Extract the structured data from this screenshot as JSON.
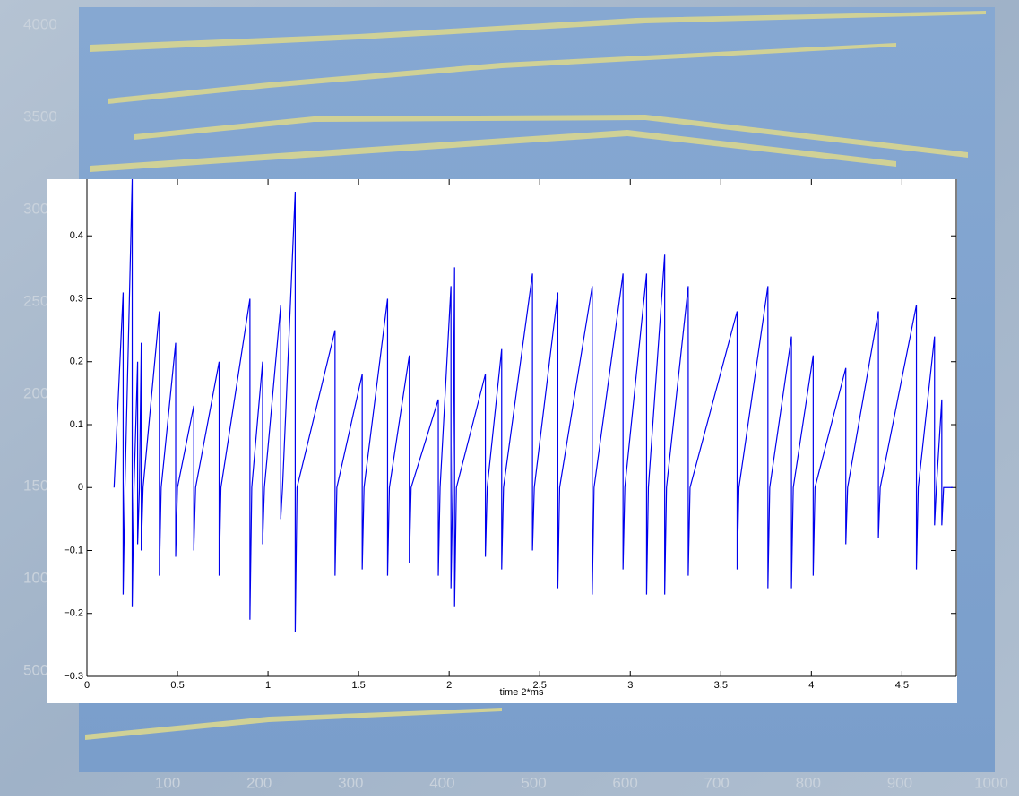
{
  "chart_data": [
    {
      "type": "image",
      "xlim": [
        0,
        1000
      ],
      "xticks": [
        100,
        200,
        300,
        400,
        500,
        600,
        700,
        800,
        900,
        1000
      ],
      "ylim": [
        0,
        4000
      ],
      "yticks": [
        500,
        1000,
        1500,
        2000,
        2500,
        3000,
        3500,
        4000
      ]
    },
    {
      "type": "line",
      "xlabel": "time   2*ms",
      "xlim": [
        0,
        4.8
      ],
      "ylim": [
        -0.3,
        0.49
      ],
      "xticks": [
        0,
        0.5,
        1,
        1.5,
        2,
        2.5,
        3,
        3.5,
        4,
        4.5
      ],
      "yticks": [
        {
          "value": -0.3,
          "label": "−0.3"
        },
        {
          "value": -0.2,
          "label": "−0.2"
        },
        {
          "value": -0.1,
          "label": "−0.1"
        },
        0,
        0.1,
        0.2,
        0.3,
        0.4
      ],
      "x": [
        0.15,
        0.2,
        0.2,
        0.21,
        0.25,
        0.25,
        0.26,
        0.28,
        0.28,
        0.29,
        0.3,
        0.3,
        0.31,
        0.4,
        0.4,
        0.41,
        0.49,
        0.49,
        0.5,
        0.59,
        0.59,
        0.6,
        0.73,
        0.73,
        0.74,
        0.9,
        0.9,
        0.91,
        0.97,
        0.97,
        0.98,
        1.07,
        1.07,
        1.08,
        1.15,
        1.15,
        1.16,
        1.37,
        1.37,
        1.38,
        1.52,
        1.52,
        1.53,
        1.66,
        1.66,
        1.67,
        1.78,
        1.78,
        1.79,
        1.94,
        1.94,
        1.95,
        2.01,
        2.01,
        2.02,
        2.03,
        2.03,
        2.04,
        2.2,
        2.2,
        2.21,
        2.29,
        2.29,
        2.3,
        2.46,
        2.46,
        2.47,
        2.6,
        2.6,
        2.61,
        2.79,
        2.79,
        2.8,
        2.96,
        2.96,
        2.97,
        3.09,
        3.09,
        3.1,
        3.19,
        3.19,
        3.2,
        3.32,
        3.32,
        3.33,
        3.59,
        3.59,
        3.6,
        3.76,
        3.76,
        3.77,
        3.89,
        3.89,
        3.9,
        4.01,
        4.01,
        4.02,
        4.19,
        4.19,
        4.2,
        4.37,
        4.37,
        4.38,
        4.58,
        4.58,
        4.59,
        4.68,
        4.68,
        4.69,
        4.72,
        4.72,
        4.73,
        4.78
      ],
      "series": [
        {
          "color": "#0000ee",
          "values": [
            0,
            0.31,
            -0.17,
            0,
            0.49,
            -0.19,
            0,
            0.2,
            -0.09,
            0,
            0.23,
            -0.1,
            0,
            0.28,
            -0.14,
            0,
            0.23,
            -0.11,
            0,
            0.13,
            -0.1,
            0,
            0.2,
            -0.14,
            0,
            0.3,
            -0.21,
            0,
            0.2,
            -0.09,
            0,
            0.29,
            -0.05,
            0,
            0.47,
            -0.23,
            0,
            0.25,
            -0.14,
            0,
            0.18,
            -0.13,
            0,
            0.3,
            -0.14,
            0,
            0.21,
            -0.12,
            0,
            0.14,
            -0.14,
            0,
            0.32,
            -0.16,
            0,
            0.35,
            -0.19,
            0,
            0.18,
            -0.11,
            0,
            0.22,
            -0.13,
            0,
            0.34,
            -0.1,
            0,
            0.31,
            -0.16,
            0,
            0.32,
            -0.17,
            0,
            0.34,
            -0.13,
            0,
            0.34,
            -0.17,
            0,
            0.37,
            -0.17,
            0,
            0.32,
            -0.14,
            0,
            0.28,
            -0.13,
            0,
            0.32,
            -0.16,
            0,
            0.24,
            -0.16,
            0,
            0.21,
            -0.14,
            0,
            0.19,
            -0.09,
            0,
            0.28,
            -0.08,
            0,
            0.29,
            -0.13,
            0,
            0.24,
            -0.06,
            0,
            0.14,
            -0.06,
            0,
            0
          ]
        }
      ]
    }
  ]
}
